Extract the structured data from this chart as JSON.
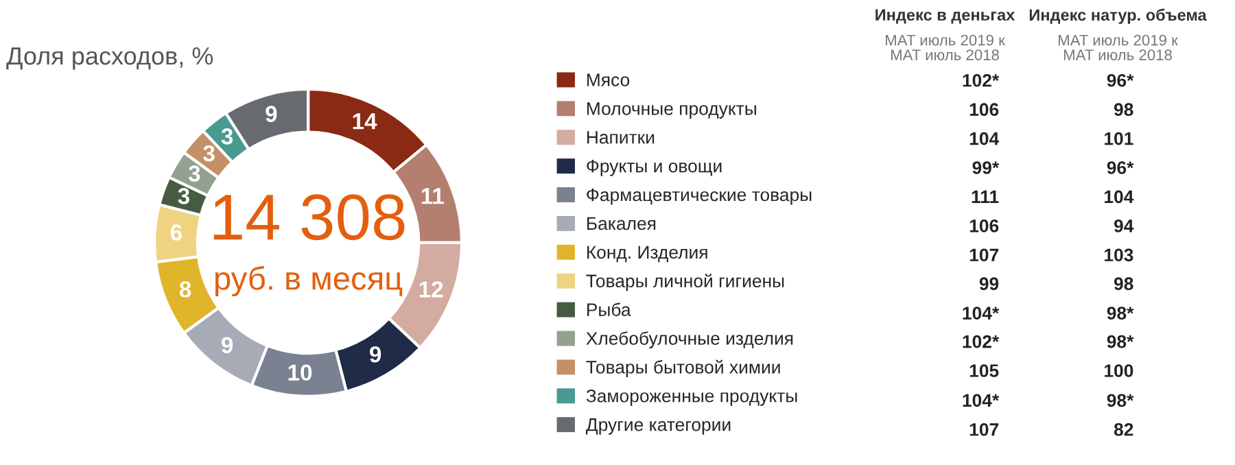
{
  "chart_data": {
    "type": "donut",
    "title": "Доля расходов, %",
    "categories": [
      "Мясо",
      "Молочные продукты",
      "Напитки",
      "Фрукты и овощи",
      "Фармацевтические товары",
      "Бакалея",
      "Конд. Изделия",
      "Товары личной гигиены",
      "Рыба",
      "Хлебобулочные изделия",
      "Товары бытовой химии",
      "Замороженные продукты",
      "Другие категории"
    ],
    "values": [
      14,
      11,
      12,
      9,
      10,
      9,
      8,
      6,
      3,
      3,
      3,
      3,
      9
    ],
    "colors": [
      "#8b2a14",
      "#b57f70",
      "#d4aba0",
      "#1f2b47",
      "#7a8190",
      "#a7abb6",
      "#e1b52a",
      "#efd381",
      "#465c41",
      "#95a190",
      "#c39068",
      "#4a9a92",
      "#676b70"
    ],
    "data_labels": true,
    "legend": "right",
    "annotations": [
      "14 308",
      "руб. в месяц",
      "Индекс в деньгах",
      "MAT июль 2019 к\nMAT июль 2018",
      "Индекс натур. объема",
      "MAT июль 2019 к\nMAT июль 2018",
      "102*",
      "96*",
      "106",
      "98",
      "104",
      "101",
      "99*",
      "96*",
      "111",
      "104",
      "106",
      "94",
      "107",
      "103",
      "99",
      "98",
      "104*",
      "98*",
      "102*",
      "98*",
      "105",
      "100",
      "104*",
      "98*",
      "107",
      "82"
    ]
  }
}
